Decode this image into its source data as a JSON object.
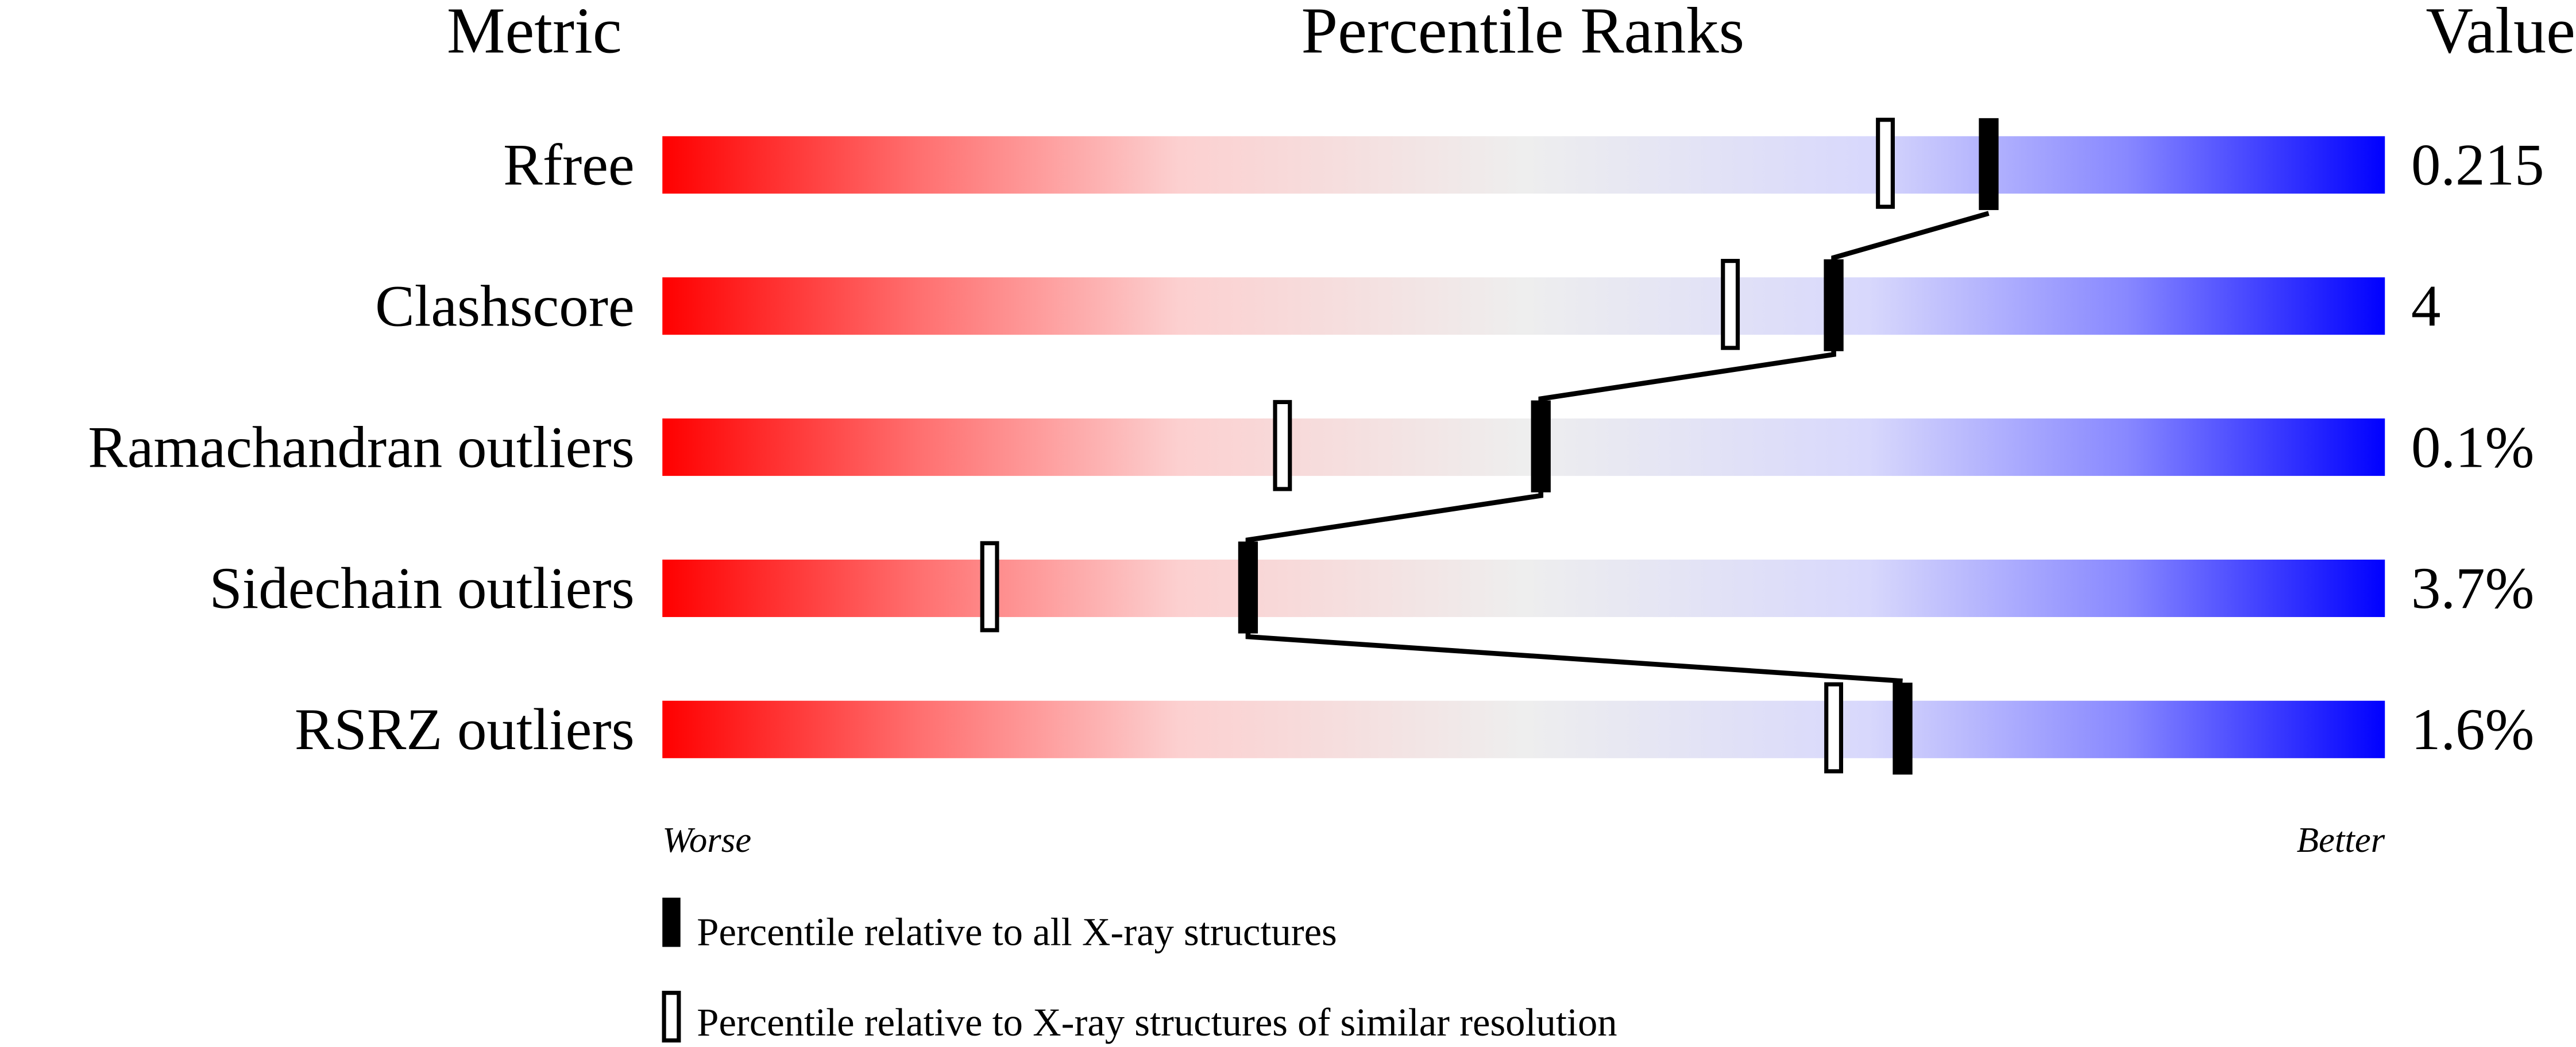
{
  "chart_data": {
    "type": "bar",
    "headers": {
      "metric": "Metric",
      "ranks": "Percentile Ranks",
      "value": "Value"
    },
    "xlim": [
      0,
      100
    ],
    "axis_labels": {
      "left": "Worse",
      "right": "Better"
    },
    "colors": {
      "worse": "#ff0000",
      "middle": "#eeeeee",
      "better": "#0000ff",
      "marker": "#000000"
    },
    "categories": [
      "Rfree",
      "Clashscore",
      "Ramachandran outliers",
      "Sidechain outliers",
      "RSRZ outliers"
    ],
    "values_text": [
      "0.215",
      "4",
      "0.1%",
      "3.7%",
      "1.6%"
    ],
    "series": [
      {
        "name": "Percentile relative to all X-ray structures",
        "marker": "filled",
        "values": [
          77,
          68,
          51,
          34,
          72
        ]
      },
      {
        "name": "Percentile relative to X-ray structures of similar resolution",
        "marker": "open",
        "values": [
          71,
          62,
          36,
          19,
          68
        ]
      }
    ],
    "legend": [
      "Percentile relative to all X-ray structures",
      "Percentile relative to X-ray structures of similar resolution"
    ]
  }
}
